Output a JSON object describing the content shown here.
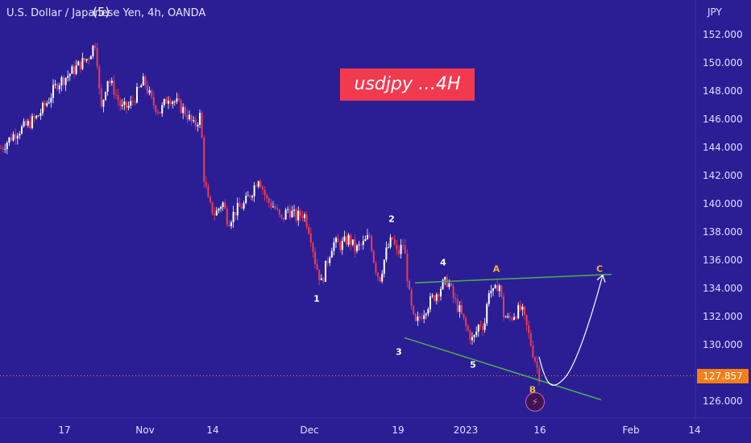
{
  "header": {
    "symbol_title": "U.S. Dollar / Japanese Yen, 4h, OANDA"
  },
  "banner": {
    "text": "usdjpy …4H"
  },
  "last_price": "127.857",
  "colors": {
    "background": "#2b1e94",
    "candle_up": "#ffffff",
    "candle_down": "#f23a4f",
    "trendline": "#4caf50",
    "projection": "#ffffff",
    "price_badge": "#f57f17"
  },
  "chart_data": {
    "type": "candlestick",
    "symbol": "USDJPY",
    "timeframe": "4h",
    "y_unit": "JPY",
    "ylim": [
      124.8,
      153.6
    ],
    "y_ticks": [
      "152.000",
      "150.000",
      "148.000",
      "146.000",
      "144.000",
      "142.000",
      "140.000",
      "138.000",
      "136.000",
      "134.000",
      "132.000",
      "130.000",
      "128.000",
      "126.000"
    ],
    "x_ticks": [
      "17",
      "Nov",
      "14",
      "Dec",
      "19",
      "2023",
      "16",
      "Feb",
      "14"
    ],
    "price_path": [
      [
        0,
        144.0
      ],
      [
        10,
        144.6
      ],
      [
        20,
        145.2
      ],
      [
        32,
        145.6
      ],
      [
        45,
        146.2
      ],
      [
        58,
        147.3
      ],
      [
        70,
        148.6
      ],
      [
        82,
        149.1
      ],
      [
        95,
        149.8
      ],
      [
        108,
        150.4
      ],
      [
        118,
        151.6
      ],
      [
        124,
        146.5
      ],
      [
        132,
        149.0
      ],
      [
        140,
        148.2
      ],
      [
        150,
        146.8
      ],
      [
        160,
        147.0
      ],
      [
        170,
        148.0
      ],
      [
        178,
        148.8
      ],
      [
        188,
        147.2
      ],
      [
        198,
        146.6
      ],
      [
        208,
        147.7
      ],
      [
        218,
        147.2
      ],
      [
        230,
        146.5
      ],
      [
        240,
        145.5
      ],
      [
        248,
        146.4
      ],
      [
        252,
        142.0
      ],
      [
        258,
        140.0
      ],
      [
        266,
        139.3
      ],
      [
        275,
        140.2
      ],
      [
        282,
        138.8
      ],
      [
        292,
        139.6
      ],
      [
        302,
        140.0
      ],
      [
        312,
        141.0
      ],
      [
        320,
        142.0
      ],
      [
        330,
        140.3
      ],
      [
        340,
        139.8
      ],
      [
        348,
        138.8
      ],
      [
        356,
        139.7
      ],
      [
        366,
        139.1
      ],
      [
        376,
        139.4
      ],
      [
        384,
        138.0
      ],
      [
        390,
        136.0
      ],
      [
        398,
        134.4
      ],
      [
        404,
        135.8
      ],
      [
        412,
        137.3
      ],
      [
        422,
        137.1
      ],
      [
        432,
        137.6
      ],
      [
        440,
        136.8
      ],
      [
        450,
        137.2
      ],
      [
        458,
        137.8
      ],
      [
        464,
        135.7
      ],
      [
        470,
        134.7
      ],
      [
        478,
        136.6
      ],
      [
        486,
        137.6
      ],
      [
        492,
        136.4
      ],
      [
        500,
        137.3
      ],
      [
        508,
        133.0
      ],
      [
        514,
        131.4
      ],
      [
        522,
        132.2
      ],
      [
        530,
        132.9
      ],
      [
        538,
        133.5
      ],
      [
        548,
        134.3
      ],
      [
        555,
        134.6
      ],
      [
        562,
        133.3
      ],
      [
        570,
        132.4
      ],
      [
        578,
        131.2
      ],
      [
        586,
        130.3
      ],
      [
        594,
        131.6
      ],
      [
        600,
        131.4
      ],
      [
        606,
        134.1
      ],
      [
        612,
        133.6
      ],
      [
        618,
        134.6
      ],
      [
        624,
        132.2
      ],
      [
        630,
        131.8
      ],
      [
        638,
        132.3
      ],
      [
        646,
        132.6
      ],
      [
        654,
        131.0
      ],
      [
        660,
        129.6
      ],
      [
        664,
        128.8
      ],
      [
        669,
        127.7
      ]
    ],
    "annotations": [
      {
        "label": "(5)",
        "x": "wave top",
        "y": 151.6
      },
      {
        "label": "1",
        "x": "low",
        "y": 134.0
      },
      {
        "label": "2",
        "x": "high",
        "y": 138.0
      },
      {
        "label": "3",
        "x": "low",
        "y": 130.3
      },
      {
        "label": "4",
        "x": "high",
        "y": 135.5
      },
      {
        "label": "5",
        "x": "low",
        "y": 129.3
      },
      {
        "label": "A",
        "x": "high",
        "y": 135.3
      },
      {
        "label": "B",
        "x": "low",
        "y": 126.8
      },
      {
        "label": "C",
        "x": "projected",
        "y": 135.2
      }
    ],
    "upper_trendline": {
      "from": 134.45,
      "to": 135.05
    },
    "lower_trendline": {
      "from": 130.55,
      "to": 126.15
    },
    "projection": {
      "from": 127.6,
      "to": 135.0
    },
    "current_price": 127.857
  },
  "wave_labels": {
    "w1": "1",
    "w2": "2",
    "w3": "3",
    "w4": "4",
    "w5": "5",
    "wA": "A",
    "wB": "B",
    "wC": "C",
    "w5top": "(5)"
  }
}
